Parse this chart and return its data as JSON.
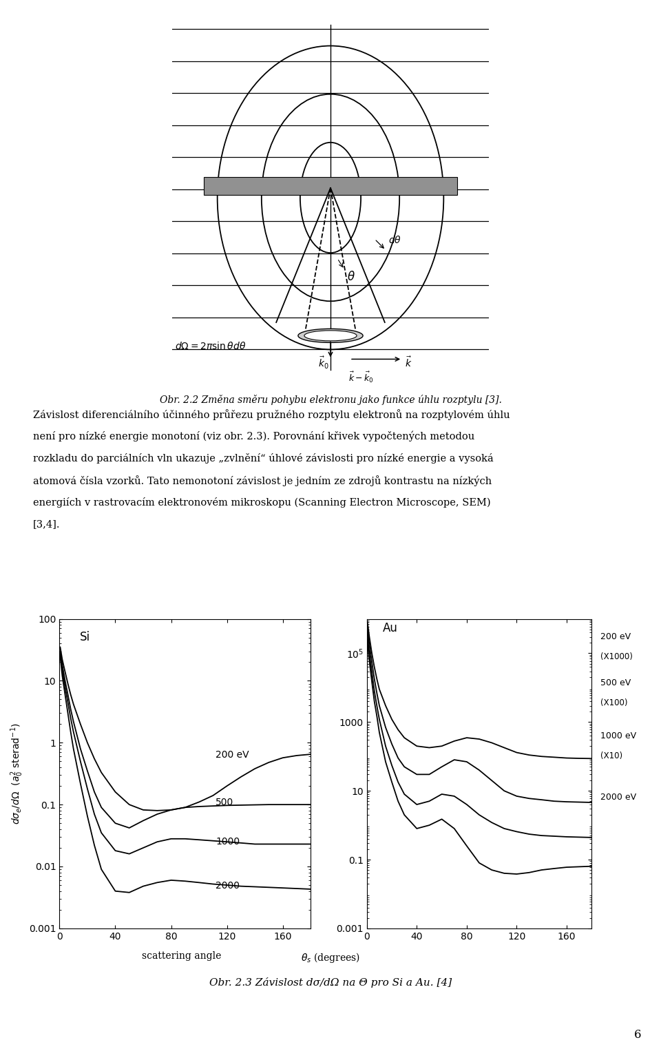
{
  "title_top": "Obr. 2.2 Změna směru pohybu elektronu jako funkce úhlu rozptylu [3].",
  "body_line1": "Závislost diferenciálního účinného průřezu pružného rozptylu elektronů na rozptylovém úhlu",
  "body_line2": "není pro nízké energie monotoní (viz obr. 2.3). Porovnání křivek vypočtených metodou",
  "body_line3": "rozkladu do parciálních vln ukazuje „zvlnění“ úhlové závislosti pro nízké energie a vysoká",
  "body_line4": "atomová čísla vzorků. Tato nemonotoní závislost je jedním ze zdrojů kontrastu na nízkých",
  "body_line5": "energiích v rastrovacím elektronovém mikroskopu (Scanning Electron Microscope, SEM)",
  "body_line6": "[3,4].",
  "caption_bottom": "Obr. 2.3 Závislost dσ/dΩ na Θ pro Si a Au. [4]",
  "page_number": "6",
  "si_angles": [
    0.5,
    2,
    4,
    6,
    8,
    10,
    15,
    20,
    25,
    30,
    40,
    50,
    60,
    70,
    80,
    90,
    100,
    110,
    120,
    130,
    140,
    150,
    160,
    170,
    180
  ],
  "si_200eV": [
    35,
    22,
    14,
    9,
    6,
    4.2,
    2.0,
    1.0,
    0.55,
    0.33,
    0.16,
    0.1,
    0.082,
    0.08,
    0.082,
    0.09,
    0.11,
    0.14,
    0.2,
    0.28,
    0.38,
    0.48,
    0.57,
    0.62,
    0.65
  ],
  "si_500eV": [
    30,
    18,
    10,
    6,
    3.5,
    2.2,
    0.8,
    0.35,
    0.16,
    0.09,
    0.05,
    0.042,
    0.055,
    0.07,
    0.082,
    0.09,
    0.093,
    0.095,
    0.097,
    0.098,
    0.099,
    0.1,
    0.1,
    0.1,
    0.1
  ],
  "si_1000eV": [
    28,
    15,
    8,
    4.5,
    2.5,
    1.5,
    0.5,
    0.18,
    0.07,
    0.035,
    0.018,
    0.016,
    0.02,
    0.025,
    0.028,
    0.028,
    0.027,
    0.026,
    0.025,
    0.024,
    0.023,
    0.023,
    0.023,
    0.023,
    0.023
  ],
  "si_2000eV": [
    25,
    12,
    6,
    3,
    1.5,
    0.8,
    0.22,
    0.065,
    0.022,
    0.009,
    0.004,
    0.0038,
    0.0048,
    0.0055,
    0.006,
    0.0058,
    0.0055,
    0.0052,
    0.005,
    0.0048,
    0.0047,
    0.0046,
    0.0045,
    0.0044,
    0.0043
  ],
  "au_angles": [
    0.5,
    2,
    4,
    6,
    8,
    10,
    15,
    20,
    25,
    30,
    40,
    50,
    60,
    70,
    80,
    90,
    100,
    110,
    120,
    130,
    140,
    150,
    160,
    170,
    180
  ],
  "au_200eV": [
    800000,
    300000,
    100000,
    40000,
    18000,
    9000,
    3000,
    1200,
    600,
    350,
    200,
    180,
    200,
    280,
    350,
    320,
    250,
    180,
    130,
    110,
    100,
    95,
    90,
    88,
    87
  ],
  "au_500eV": [
    500000,
    180000,
    55000,
    18000,
    7000,
    3000,
    700,
    230,
    90,
    50,
    30,
    30,
    50,
    80,
    70,
    40,
    20,
    10,
    7,
    6,
    5.5,
    5,
    4.8,
    4.7,
    4.6
  ],
  "au_1000eV": [
    300000,
    100000,
    28000,
    8000,
    3000,
    1200,
    200,
    55,
    18,
    8,
    4,
    5,
    8,
    7,
    4,
    2,
    1.2,
    0.8,
    0.65,
    0.55,
    0.5,
    0.48,
    0.46,
    0.45,
    0.44
  ],
  "au_2000eV": [
    200000,
    60000,
    15000,
    4000,
    1500,
    500,
    70,
    18,
    5,
    2,
    0.8,
    1.0,
    1.5,
    0.8,
    0.25,
    0.08,
    0.05,
    0.04,
    0.038,
    0.042,
    0.05,
    0.055,
    0.06,
    0.062,
    0.064
  ]
}
